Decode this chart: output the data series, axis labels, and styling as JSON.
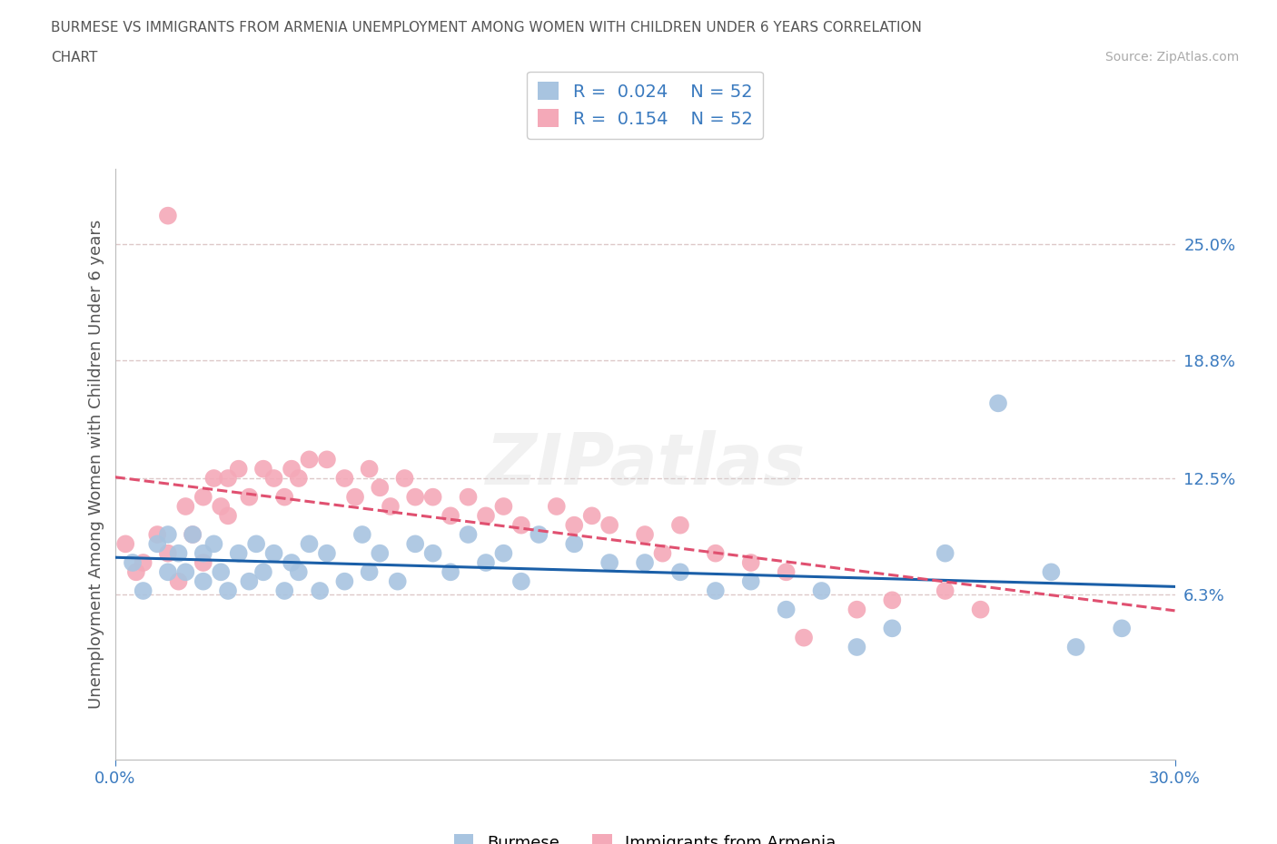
{
  "title_line1": "BURMESE VS IMMIGRANTS FROM ARMENIA UNEMPLOYMENT AMONG WOMEN WITH CHILDREN UNDER 6 YEARS CORRELATION",
  "title_line2": "CHART",
  "source": "Source: ZipAtlas.com",
  "ylabel": "Unemployment Among Women with Children Under 6 years",
  "xlim": [
    0.0,
    0.3
  ],
  "ylim": [
    -0.025,
    0.29
  ],
  "xtick_labels": [
    "0.0%",
    "30.0%"
  ],
  "xtick_positions": [
    0.0,
    0.3
  ],
  "ytick_labels": [
    "6.3%",
    "12.5%",
    "18.8%",
    "25.0%"
  ],
  "ytick_positions": [
    0.063,
    0.125,
    0.188,
    0.25
  ],
  "burmese_color": "#a8c4e0",
  "armenia_color": "#f4a9b8",
  "burmese_line_color": "#1a5fa8",
  "armenia_line_color": "#e05070",
  "grid_color": "#ddc8c8",
  "title_color": "#555555",
  "label_color": "#3a7abf",
  "burmese_R": 0.024,
  "armenia_R": 0.154,
  "N": 52,
  "burmese_x": [
    0.005,
    0.008,
    0.012,
    0.015,
    0.015,
    0.018,
    0.02,
    0.022,
    0.025,
    0.025,
    0.028,
    0.03,
    0.032,
    0.035,
    0.038,
    0.04,
    0.042,
    0.045,
    0.048,
    0.05,
    0.052,
    0.055,
    0.058,
    0.06,
    0.065,
    0.07,
    0.072,
    0.075,
    0.08,
    0.085,
    0.09,
    0.095,
    0.1,
    0.105,
    0.11,
    0.115,
    0.12,
    0.13,
    0.14,
    0.15,
    0.16,
    0.17,
    0.18,
    0.19,
    0.2,
    0.21,
    0.22,
    0.235,
    0.25,
    0.265,
    0.272,
    0.285
  ],
  "burmese_y": [
    0.08,
    0.065,
    0.09,
    0.075,
    0.095,
    0.085,
    0.075,
    0.095,
    0.085,
    0.07,
    0.09,
    0.075,
    0.065,
    0.085,
    0.07,
    0.09,
    0.075,
    0.085,
    0.065,
    0.08,
    0.075,
    0.09,
    0.065,
    0.085,
    0.07,
    0.095,
    0.075,
    0.085,
    0.07,
    0.09,
    0.085,
    0.075,
    0.095,
    0.08,
    0.085,
    0.07,
    0.095,
    0.09,
    0.08,
    0.08,
    0.075,
    0.065,
    0.07,
    0.055,
    0.065,
    0.035,
    0.045,
    0.085,
    0.165,
    0.075,
    0.035,
    0.045
  ],
  "armenia_x": [
    0.003,
    0.006,
    0.008,
    0.012,
    0.015,
    0.018,
    0.02,
    0.022,
    0.025,
    0.025,
    0.028,
    0.03,
    0.032,
    0.032,
    0.035,
    0.038,
    0.042,
    0.045,
    0.048,
    0.05,
    0.052,
    0.055,
    0.06,
    0.065,
    0.068,
    0.072,
    0.075,
    0.078,
    0.082,
    0.085,
    0.09,
    0.095,
    0.1,
    0.105,
    0.11,
    0.115,
    0.125,
    0.13,
    0.135,
    0.14,
    0.15,
    0.155,
    0.16,
    0.17,
    0.18,
    0.19,
    0.195,
    0.21,
    0.22,
    0.235,
    0.245,
    0.015
  ],
  "armenia_y": [
    0.09,
    0.075,
    0.08,
    0.095,
    0.085,
    0.07,
    0.11,
    0.095,
    0.115,
    0.08,
    0.125,
    0.11,
    0.125,
    0.105,
    0.13,
    0.115,
    0.13,
    0.125,
    0.115,
    0.13,
    0.125,
    0.135,
    0.135,
    0.125,
    0.115,
    0.13,
    0.12,
    0.11,
    0.125,
    0.115,
    0.115,
    0.105,
    0.115,
    0.105,
    0.11,
    0.1,
    0.11,
    0.1,
    0.105,
    0.1,
    0.095,
    0.085,
    0.1,
    0.085,
    0.08,
    0.075,
    0.04,
    0.055,
    0.06,
    0.065,
    0.055,
    0.265
  ]
}
